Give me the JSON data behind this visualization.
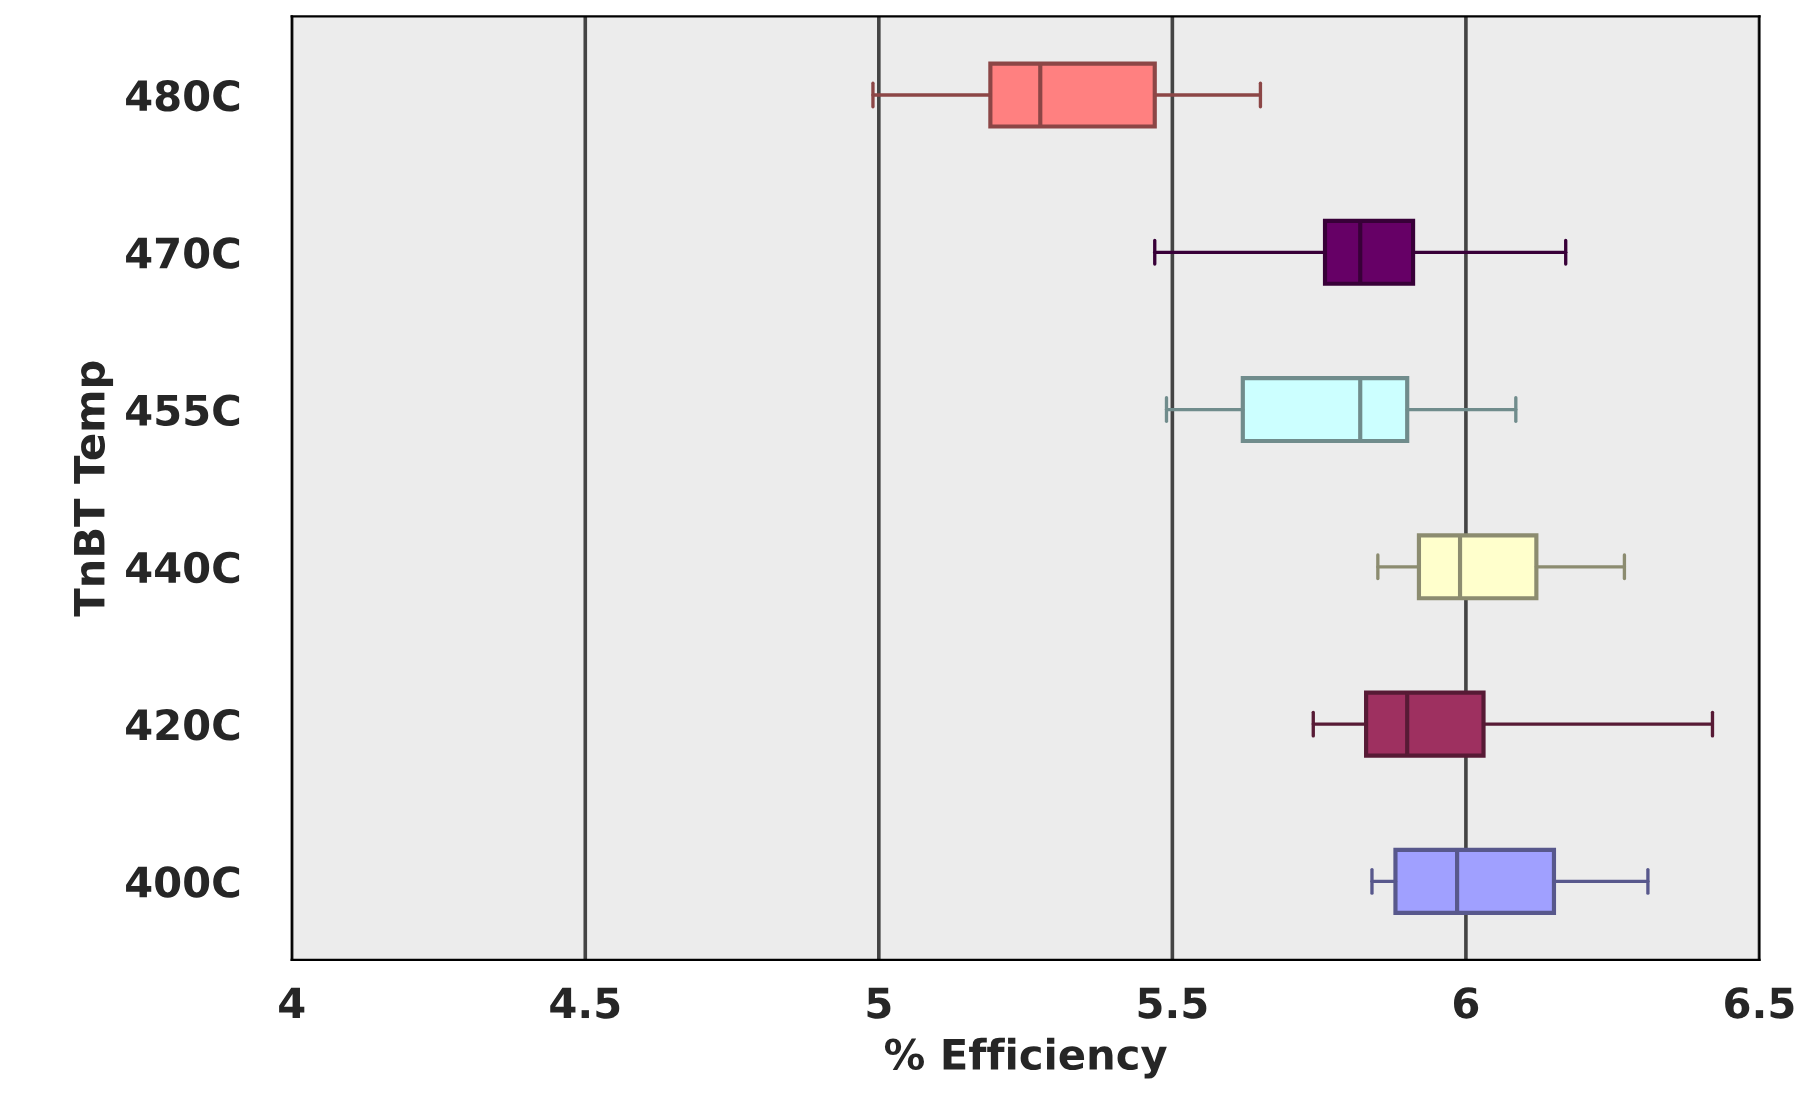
{
  "chart_data": {
    "type": "box",
    "orientation": "horizontal",
    "xlabel": "% Efficiency",
    "ylabel": "TnBT Temp",
    "categories": [
      "480C",
      "470C",
      "455C",
      "440C",
      "420C",
      "400C"
    ],
    "boxes": [
      {
        "low": 4.99,
        "q1": 5.19,
        "median": 5.275,
        "q3": 5.47,
        "high": 5.65
      },
      {
        "low": 5.47,
        "q1": 5.76,
        "median": 5.82,
        "q3": 5.91,
        "high": 6.17
      },
      {
        "low": 5.49,
        "q1": 5.62,
        "median": 5.82,
        "q3": 5.9,
        "high": 6.085
      },
      {
        "low": 5.85,
        "q1": 5.92,
        "median": 5.99,
        "q3": 6.12,
        "high": 6.27
      },
      {
        "low": 5.74,
        "q1": 5.83,
        "median": 5.9,
        "q3": 6.03,
        "high": 6.42
      },
      {
        "low": 5.84,
        "q1": 5.88,
        "median": 5.985,
        "q3": 6.15,
        "high": 6.31
      }
    ],
    "colors": [
      "#ff8080",
      "#660066",
      "#ccffff",
      "#ffffcc",
      "#9e3060",
      "#a0a0ff"
    ],
    "xlim": [
      4,
      6.5
    ],
    "xticks": [
      4,
      4.5,
      5,
      5.5,
      6,
      6.5
    ],
    "grid": "x"
  }
}
